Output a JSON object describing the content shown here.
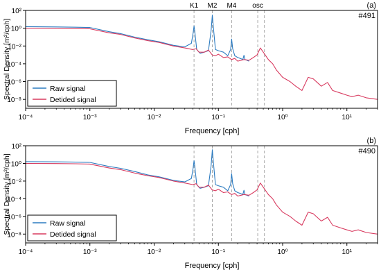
{
  "colors": {
    "raw": "#2c7bc0",
    "detided": "#d83a5f",
    "axis": "#000000",
    "dashed": "#a8a8a8"
  },
  "chart_data": [
    {
      "type": "line",
      "panel_label": "(a)",
      "station": "#491",
      "xlabel": "Frequency [cph]",
      "ylabel": "Spectral Density [m²/cph]",
      "x_scale": "log",
      "y_scale": "log",
      "xlim": [
        0.0001,
        30
      ],
      "ylim": [
        1e-09,
        100
      ],
      "x_ticks": [
        0.0001,
        0.001,
        0.01,
        0.1,
        1,
        10
      ],
      "x_tick_labels": [
        "10⁻⁴",
        "10⁻³",
        "10⁻²",
        "10⁻¹",
        "10⁰",
        "10¹"
      ],
      "y_ticks": [
        100,
        1,
        0.01,
        0.0001,
        1e-06,
        1e-08
      ],
      "y_tick_labels": [
        "10²",
        "10⁰",
        "10⁻²",
        "10⁻⁴",
        "10⁻⁶",
        "10⁻⁸"
      ],
      "vlines": [
        {
          "label": "K1",
          "x": 0.0418
        },
        {
          "label": "M2",
          "x": 0.0805
        },
        {
          "label": "M4",
          "x": 0.161
        },
        {
          "label": "osc",
          "x": 0.41
        },
        {
          "label": "",
          "x": 0.52
        }
      ],
      "legend_position": "bottom-left",
      "series": [
        {
          "name": "Raw signal",
          "color": "#2c7bc0",
          "x": [
            0.0001,
            0.0003,
            0.0006,
            0.001,
            0.002,
            0.003,
            0.005,
            0.008,
            0.012,
            0.02,
            0.03,
            0.038,
            0.0405,
            0.0418,
            0.043,
            0.046,
            0.052,
            0.06,
            0.07,
            0.077,
            0.0805,
            0.084,
            0.09,
            0.1,
            0.12,
            0.14,
            0.155,
            0.161,
            0.167,
            0.18,
            0.2,
            0.22,
            0.24,
            0.25,
            0.26,
            0.3
          ],
          "y": [
            1.5,
            1.4,
            1.3,
            1.2,
            0.4,
            0.25,
            0.1,
            0.05,
            0.03,
            0.012,
            0.008,
            0.02,
            0.3,
            1.8,
            0.35,
            0.004,
            0.0015,
            0.002,
            0.003,
            0.5,
            30,
            0.9,
            0.004,
            0.003,
            0.002,
            0.0008,
            0.004,
            0.06,
            0.005,
            0.0008,
            0.0005,
            0.0004,
            0.0003,
            0.0009,
            0.0003,
            0.0002
          ]
        },
        {
          "name": "Detided signal",
          "color": "#d83a5f",
          "x": [
            0.0001,
            0.0003,
            0.0006,
            0.001,
            0.002,
            0.003,
            0.005,
            0.008,
            0.012,
            0.02,
            0.03,
            0.04,
            0.045,
            0.05,
            0.06,
            0.07,
            0.08,
            0.09,
            0.1,
            0.12,
            0.14,
            0.16,
            0.18,
            0.2,
            0.25,
            0.3,
            0.35,
            0.4,
            0.45,
            0.5,
            0.6,
            0.7,
            0.8,
            1.0,
            1.3,
            1.6,
            2.0,
            2.5,
            3.0,
            4.0,
            5.0,
            6.0,
            8.0,
            10.0,
            12.0,
            15.0,
            20.0,
            30.0
          ],
          "y": [
            1.0,
            0.95,
            0.9,
            0.85,
            0.3,
            0.2,
            0.08,
            0.04,
            0.025,
            0.01,
            0.006,
            0.004,
            0.005,
            0.002,
            0.002,
            0.0035,
            0.001,
            0.0008,
            0.0012,
            0.0005,
            0.0006,
            0.0003,
            0.0004,
            0.0002,
            0.0003,
            0.00025,
            0.0005,
            0.001,
            0.006,
            0.002,
            0.0003,
            0.0001,
            2e-05,
            3e-06,
            1e-06,
            3e-07,
            1e-07,
            3e-06,
            2e-06,
            3e-07,
            8e-07,
            1e-07,
            5e-08,
            3e-08,
            2e-08,
            3e-08,
            1.5e-08,
            1e-08
          ]
        }
      ]
    },
    {
      "type": "line",
      "panel_label": "(b)",
      "station": "#490",
      "xlabel": "Frequency [cph]",
      "ylabel": "Spectral Density [m²/cph]",
      "x_scale": "log",
      "y_scale": "log",
      "xlim": [
        0.0001,
        30
      ],
      "ylim": [
        1e-09,
        100
      ],
      "x_ticks": [
        0.0001,
        0.001,
        0.01,
        0.1,
        1,
        10
      ],
      "x_tick_labels": [
        "10⁻⁴",
        "10⁻³",
        "10⁻²",
        "10⁻¹",
        "10⁰",
        "10¹"
      ],
      "y_ticks": [
        100,
        1,
        0.01,
        0.0001,
        1e-06,
        1e-08
      ],
      "y_tick_labels": [
        "10²",
        "10⁰",
        "10⁻²",
        "10⁻⁴",
        "10⁻⁶",
        "10⁻⁸"
      ],
      "vlines": [
        {
          "label": "",
          "x": 0.0418
        },
        {
          "label": "",
          "x": 0.0805
        },
        {
          "label": "",
          "x": 0.161
        },
        {
          "label": "",
          "x": 0.41
        },
        {
          "label": "",
          "x": 0.52
        }
      ],
      "legend_position": "bottom-left",
      "series": [
        {
          "name": "Raw signal",
          "color": "#2c7bc0",
          "x": [
            0.0001,
            0.0003,
            0.0006,
            0.001,
            0.002,
            0.003,
            0.005,
            0.008,
            0.012,
            0.02,
            0.03,
            0.038,
            0.0405,
            0.0418,
            0.043,
            0.046,
            0.052,
            0.06,
            0.07,
            0.077,
            0.0805,
            0.084,
            0.09,
            0.1,
            0.12,
            0.14,
            0.155,
            0.161,
            0.167,
            0.18,
            0.2,
            0.22,
            0.24,
            0.25,
            0.26,
            0.3
          ],
          "y": [
            1.6,
            1.5,
            1.4,
            1.3,
            0.45,
            0.28,
            0.12,
            0.05,
            0.03,
            0.012,
            0.008,
            0.02,
            0.3,
            2.0,
            0.4,
            0.004,
            0.0015,
            0.002,
            0.003,
            0.5,
            35,
            1.0,
            0.004,
            0.003,
            0.002,
            0.0008,
            0.004,
            0.07,
            0.005,
            0.0008,
            0.0005,
            0.0004,
            0.0003,
            0.0009,
            0.0003,
            0.0002
          ]
        },
        {
          "name": "Detided signal",
          "color": "#d83a5f",
          "x": [
            0.0001,
            0.0003,
            0.0006,
            0.001,
            0.002,
            0.003,
            0.005,
            0.008,
            0.012,
            0.02,
            0.03,
            0.04,
            0.045,
            0.05,
            0.06,
            0.07,
            0.08,
            0.09,
            0.1,
            0.12,
            0.14,
            0.16,
            0.18,
            0.2,
            0.25,
            0.3,
            0.35,
            0.4,
            0.45,
            0.5,
            0.6,
            0.7,
            0.8,
            1.0,
            1.3,
            1.6,
            2.0,
            2.5,
            3.0,
            4.0,
            5.0,
            6.0,
            8.0,
            10.0,
            12.0,
            15.0,
            20.0,
            30.0
          ],
          "y": [
            1.0,
            0.95,
            0.9,
            0.85,
            0.3,
            0.2,
            0.08,
            0.04,
            0.025,
            0.01,
            0.006,
            0.004,
            0.005,
            0.002,
            0.002,
            0.0035,
            0.001,
            0.0008,
            0.0012,
            0.0005,
            0.0006,
            0.0003,
            0.0004,
            0.0002,
            0.0003,
            0.00025,
            0.0005,
            0.001,
            0.006,
            0.002,
            0.0003,
            0.0001,
            2e-05,
            3e-06,
            1e-06,
            3e-07,
            1e-07,
            3e-06,
            2e-06,
            3e-07,
            8e-07,
            1e-07,
            5e-08,
            3e-08,
            2e-08,
            3e-08,
            1.5e-08,
            1e-08
          ]
        }
      ]
    }
  ]
}
